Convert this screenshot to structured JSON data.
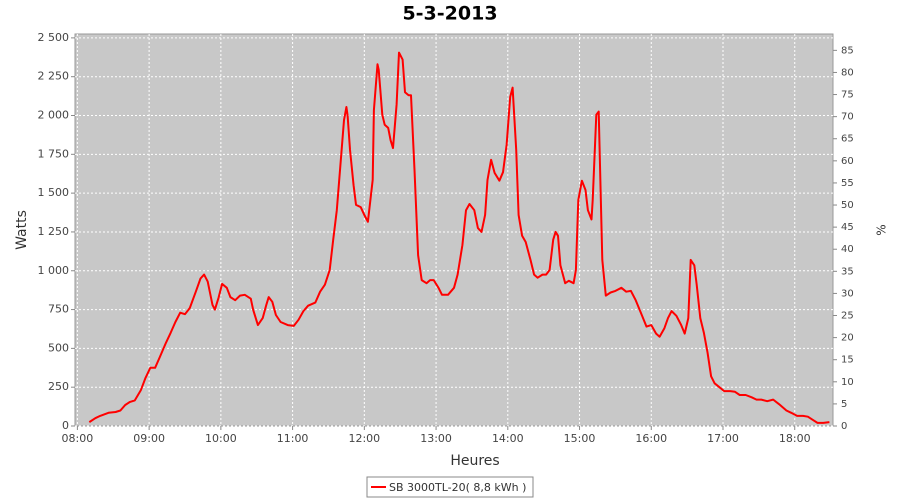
{
  "chart_data": {
    "type": "line",
    "title": "5-3-2013",
    "xlabel": "Heures",
    "ylabel": "Watts",
    "y2label": "%",
    "legend": "bottom",
    "grid": true,
    "xlim": [
      478,
      1112
    ],
    "xticks": [
      {
        "value": 480,
        "label": "08:00"
      },
      {
        "value": 540,
        "label": "09:00"
      },
      {
        "value": 600,
        "label": "10:00"
      },
      {
        "value": 660,
        "label": "11:00"
      },
      {
        "value": 720,
        "label": "12:00"
      },
      {
        "value": 780,
        "label": "13:00"
      },
      {
        "value": 840,
        "label": "14:00"
      },
      {
        "value": 900,
        "label": "15:00"
      },
      {
        "value": 960,
        "label": "16:00"
      },
      {
        "value": 1020,
        "label": "17:00"
      },
      {
        "value": 1080,
        "label": "18:00"
      }
    ],
    "ylim": [
      0,
      2525
    ],
    "yticks": [
      0,
      250,
      500,
      750,
      {
        "value": 1000,
        "label": "1 000"
      },
      {
        "value": 1250,
        "label": "1 250"
      },
      {
        "value": 1500,
        "label": "1 500"
      },
      {
        "value": 1750,
        "label": "1 750"
      },
      {
        "value": 2000,
        "label": "2 000"
      },
      {
        "value": 2250,
        "label": "2 250"
      },
      {
        "value": 2500,
        "label": "2 500"
      }
    ],
    "y2lim": [
      0,
      88.7
    ],
    "y2ticks": [
      0,
      5,
      10,
      15,
      20,
      25,
      30,
      35,
      40,
      45,
      50,
      55,
      60,
      65,
      70,
      75,
      80,
      85
    ],
    "x": [
      490,
      495,
      499,
      506,
      512,
      516,
      520,
      524,
      528,
      533,
      537,
      541,
      545,
      549,
      554,
      558,
      562,
      566,
      570,
      574,
      579,
      583,
      586,
      589,
      593,
      595,
      598,
      601,
      605,
      608,
      612,
      616,
      620,
      625,
      627,
      631,
      635,
      638,
      640,
      643,
      646,
      650,
      656,
      661,
      665,
      669,
      673,
      679,
      683,
      687,
      691,
      694,
      697,
      700,
      703,
      705,
      706,
      708,
      711,
      713,
      717,
      720,
      723,
      727,
      728,
      731,
      732,
      735,
      737,
      740,
      742,
      744,
      747,
      749,
      752,
      754,
      757,
      759,
      762,
      765,
      768,
      772,
      775,
      778,
      782,
      785,
      790,
      795,
      798,
      802,
      805,
      808,
      812,
      815,
      818,
      821,
      823,
      826,
      829,
      833,
      836,
      839,
      842,
      844,
      847,
      849,
      852,
      855,
      859,
      862,
      865,
      869,
      872,
      875,
      878,
      880,
      882,
      884,
      888,
      891,
      895,
      897,
      899,
      902,
      905,
      907,
      910,
      911,
      914,
      916,
      919,
      922,
      926,
      930,
      935,
      939,
      943,
      947,
      951,
      956,
      960,
      964,
      967,
      971,
      974,
      977,
      981,
      985,
      988,
      991,
      993,
      996,
      998,
      1001,
      1004,
      1007,
      1010,
      1013,
      1017,
      1021,
      1026,
      1030,
      1034,
      1039,
      1044,
      1048,
      1052,
      1057,
      1062,
      1067,
      1073,
      1077,
      1082,
      1087,
      1091,
      1095,
      1099,
      1104,
      1109
    ],
    "series": [
      {
        "name": "SB 3000TL-20( 8,8 kWh )",
        "color": "#ff0000",
        "values": [
          25,
          50,
          65,
          85,
          90,
          100,
          135,
          155,
          165,
          230,
          310,
          375,
          375,
          445,
          535,
          600,
          670,
          730,
          720,
          760,
          865,
          950,
          975,
          930,
          780,
          750,
          825,
          915,
          890,
          830,
          810,
          840,
          845,
          820,
          750,
          650,
          695,
          780,
          830,
          800,
          715,
          670,
          650,
          645,
          685,
          740,
          775,
          795,
          865,
          910,
          1005,
          1200,
          1390,
          1680,
          1970,
          2055,
          2000,
          1780,
          1550,
          1425,
          1410,
          1360,
          1315,
          1585,
          2035,
          2330,
          2295,
          2005,
          1940,
          1920,
          1840,
          1790,
          2070,
          2405,
          2360,
          2150,
          2130,
          2130,
          1650,
          1100,
          940,
          920,
          940,
          940,
          890,
          845,
          845,
          890,
          975,
          1165,
          1390,
          1430,
          1390,
          1275,
          1250,
          1360,
          1585,
          1715,
          1630,
          1580,
          1635,
          1810,
          2120,
          2180,
          1780,
          1360,
          1225,
          1185,
          1070,
          975,
          955,
          975,
          975,
          1005,
          1200,
          1250,
          1225,
          1035,
          920,
          935,
          920,
          1005,
          1455,
          1580,
          1520,
          1390,
          1330,
          1455,
          2005,
          2025,
          1070,
          840,
          860,
          870,
          890,
          865,
          870,
          810,
          735,
          640,
          650,
          595,
          575,
          630,
          695,
          740,
          710,
          650,
          595,
          695,
          1070,
          1035,
          910,
          695,
          600,
          475,
          320,
          275,
          250,
          225,
          225,
          220,
          200,
          200,
          185,
          170,
          170,
          160,
          170,
          140,
          100,
          85,
          65,
          65,
          60,
          40,
          20,
          20,
          25
        ]
      }
    ]
  }
}
